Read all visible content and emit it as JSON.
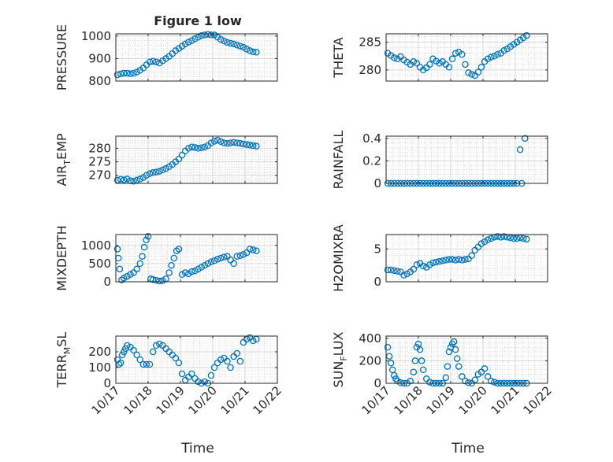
{
  "figure": {
    "title": "Figure 1 low",
    "xlabel": "Time",
    "marker_color": "#0072BD",
    "axis_color": "#262626",
    "grid_color": "#b0b0b0"
  },
  "chart_data": [
    {
      "type": "scatter",
      "ylabel": "PRESSURE",
      "ylabel_sub": "",
      "ylabel_tail": "",
      "title": "Figure 1 low",
      "xlim": [
        0,
        5
      ],
      "ylim": [
        800,
        1010
      ],
      "xticks": [
        0,
        1,
        2,
        3,
        4,
        5
      ],
      "xtick_labels": [],
      "yticks": [
        800,
        900,
        1000
      ],
      "ytick_labels": [
        "800",
        "900",
        "1000"
      ],
      "grid": true,
      "x": [
        0.05,
        0.15,
        0.25,
        0.35,
        0.45,
        0.55,
        0.65,
        0.75,
        0.85,
        0.95,
        1.05,
        1.15,
        1.25,
        1.35,
        1.45,
        1.55,
        1.65,
        1.75,
        1.85,
        1.95,
        2.05,
        2.15,
        2.25,
        2.35,
        2.45,
        2.55,
        2.65,
        2.75,
        2.85,
        2.95,
        3.05,
        3.15,
        3.25,
        3.35,
        3.45,
        3.55,
        3.65,
        3.75,
        3.85,
        3.95,
        4.05,
        4.15,
        4.25,
        4.35
      ],
      "y": [
        828,
        832,
        835,
        835,
        833,
        835,
        840,
        848,
        858,
        872,
        885,
        888,
        885,
        880,
        890,
        900,
        910,
        922,
        935,
        945,
        955,
        965,
        973,
        980,
        988,
        995,
        1002,
        1005,
        1008,
        1005,
        1005,
        995,
        985,
        978,
        972,
        968,
        965,
        960,
        955,
        950,
        942,
        935,
        930,
        928
      ]
    },
    {
      "type": "scatter",
      "ylabel": "THETA",
      "ylabel_sub": "",
      "ylabel_tail": "",
      "xlim": [
        0,
        5
      ],
      "ylim": [
        278,
        286.5
      ],
      "xticks": [
        0,
        1,
        2,
        3,
        4,
        5
      ],
      "xtick_labels": [],
      "yticks": [
        280,
        285
      ],
      "ytick_labels": [
        "280",
        "285"
      ],
      "grid": true,
      "x": [
        0.05,
        0.15,
        0.25,
        0.35,
        0.45,
        0.55,
        0.65,
        0.75,
        0.85,
        0.95,
        1.05,
        1.15,
        1.25,
        1.35,
        1.45,
        1.55,
        1.65,
        1.75,
        1.85,
        1.95,
        2.05,
        2.15,
        2.25,
        2.35,
        2.45,
        2.55,
        2.65,
        2.75,
        2.85,
        2.95,
        3.05,
        3.15,
        3.25,
        3.35,
        3.45,
        3.55,
        3.65,
        3.75,
        3.85,
        3.95,
        4.05,
        4.15,
        4.25,
        4.35
      ],
      "y": [
        283,
        282.6,
        282.2,
        282,
        282.4,
        281.8,
        281.4,
        281,
        281.5,
        281.2,
        280.5,
        280,
        280.4,
        281,
        282,
        281.6,
        281.2,
        281.5,
        281,
        280.5,
        282,
        283,
        283.2,
        282.8,
        281,
        279.5,
        279.2,
        279,
        279.6,
        280.5,
        281.5,
        282,
        282.3,
        282.5,
        282.8,
        283,
        283.5,
        283.8,
        284.2,
        284.6,
        285,
        285.4,
        285.8,
        286.2
      ]
    },
    {
      "type": "scatter",
      "ylabel": "AIR",
      "ylabel_sub": "T",
      "ylabel_tail": "EMP",
      "xlim": [
        0,
        5
      ],
      "ylim": [
        267,
        284.5
      ],
      "xticks": [
        0,
        1,
        2,
        3,
        4,
        5
      ],
      "xtick_labels": [],
      "yticks": [
        270,
        275,
        280
      ],
      "ytick_labels": [
        "270",
        "275",
        "280"
      ],
      "grid": true,
      "x": [
        0.05,
        0.15,
        0.25,
        0.35,
        0.45,
        0.55,
        0.65,
        0.75,
        0.85,
        0.95,
        1.05,
        1.15,
        1.25,
        1.35,
        1.45,
        1.55,
        1.65,
        1.75,
        1.85,
        1.95,
        2.05,
        2.15,
        2.25,
        2.35,
        2.45,
        2.55,
        2.65,
        2.75,
        2.85,
        2.95,
        3.05,
        3.15,
        3.25,
        3.35,
        3.45,
        3.55,
        3.65,
        3.75,
        3.85,
        3.95,
        4.05,
        4.15,
        4.25,
        4.35
      ],
      "y": [
        268.2,
        268.5,
        268.3,
        268.6,
        268,
        267.8,
        268.2,
        268.6,
        269.2,
        270,
        270.6,
        271,
        271.2,
        271.5,
        272,
        272.5,
        273.2,
        274,
        275,
        276,
        277.5,
        279,
        280,
        280.5,
        280.3,
        280,
        280.2,
        280.5,
        281,
        282,
        282.6,
        283,
        282.5,
        282,
        281.8,
        282,
        282.2,
        282,
        281.8,
        281.6,
        281.4,
        281.2,
        281,
        280.8
      ]
    },
    {
      "type": "scatter",
      "ylabel": "RAINFALL",
      "ylabel_sub": "",
      "ylabel_tail": "",
      "xlim": [
        0,
        5
      ],
      "ylim": [
        0,
        0.42
      ],
      "xticks": [
        0,
        1,
        2,
        3,
        4,
        5
      ],
      "xtick_labels": [],
      "yticks": [
        0,
        0.2,
        0.4
      ],
      "ytick_labels": [
        "0",
        "0.2",
        "0.4"
      ],
      "grid": true,
      "x": [
        0.05,
        0.15,
        0.25,
        0.35,
        0.45,
        0.55,
        0.65,
        0.75,
        0.85,
        0.95,
        1.05,
        1.15,
        1.25,
        1.35,
        1.45,
        1.55,
        1.65,
        1.75,
        1.85,
        1.95,
        2.05,
        2.15,
        2.25,
        2.35,
        2.45,
        2.55,
        2.65,
        2.75,
        2.85,
        2.95,
        3.05,
        3.15,
        3.25,
        3.35,
        3.45,
        3.55,
        3.65,
        3.75,
        3.85,
        3.95,
        4.05,
        4.15,
        4.2,
        4.3
      ],
      "y": [
        0,
        0,
        0,
        0,
        0,
        0,
        0,
        0,
        0,
        0,
        0,
        0,
        0,
        0,
        0,
        0,
        0,
        0,
        0,
        0,
        0,
        0,
        0,
        0,
        0,
        0,
        0,
        0,
        0,
        0,
        0,
        0,
        0,
        0,
        0,
        0,
        0,
        0,
        0,
        0,
        0,
        0.3,
        0,
        0.4
      ]
    },
    {
      "type": "scatter",
      "ylabel": "MIXDEPTH",
      "ylabel_sub": "",
      "ylabel_tail": "",
      "xlim": [
        0,
        5
      ],
      "ylim": [
        0,
        1300
      ],
      "xticks": [
        0,
        1,
        2,
        3,
        4,
        5
      ],
      "xtick_labels": [],
      "yticks": [
        0,
        500,
        1000
      ],
      "ytick_labels": [
        "0",
        "500",
        "1000"
      ],
      "grid": true,
      "x": [
        0.05,
        0.08,
        0.12,
        0.18,
        0.25,
        0.35,
        0.45,
        0.55,
        0.65,
        0.75,
        0.82,
        0.88,
        0.94,
        1.0,
        1.08,
        1.15,
        1.25,
        1.35,
        1.45,
        1.55,
        1.65,
        1.72,
        1.8,
        1.88,
        1.95,
        2.05,
        2.15,
        2.25,
        2.35,
        2.45,
        2.55,
        2.65,
        2.75,
        2.85,
        2.95,
        3.05,
        3.15,
        3.25,
        3.35,
        3.45,
        3.55,
        3.65,
        3.75,
        3.85,
        3.95,
        4.05,
        4.15,
        4.25,
        4.35
      ],
      "y": [
        900,
        650,
        350,
        50,
        100,
        150,
        200,
        250,
        350,
        500,
        700,
        950,
        1150,
        1250,
        80,
        60,
        40,
        20,
        30,
        80,
        250,
        450,
        650,
        850,
        900,
        200,
        250,
        220,
        280,
        300,
        350,
        400,
        450,
        500,
        550,
        580,
        620,
        650,
        680,
        700,
        600,
        500,
        700,
        720,
        750,
        800,
        900,
        880,
        850
      ]
    },
    {
      "type": "scatter",
      "ylabel": "H2OMIXRA",
      "ylabel_sub": "",
      "ylabel_tail": "",
      "xlim": [
        0,
        5
      ],
      "ylim": [
        0,
        7.2
      ],
      "xticks": [
        0,
        1,
        2,
        3,
        4,
        5
      ],
      "xtick_labels": [],
      "yticks": [
        0,
        5
      ],
      "ytick_labels": [
        "0",
        "5"
      ],
      "grid": true,
      "x": [
        0.05,
        0.15,
        0.25,
        0.35,
        0.45,
        0.55,
        0.65,
        0.75,
        0.85,
        0.95,
        1.05,
        1.15,
        1.25,
        1.35,
        1.45,
        1.55,
        1.65,
        1.75,
        1.85,
        1.95,
        2.05,
        2.15,
        2.25,
        2.35,
        2.45,
        2.55,
        2.65,
        2.75,
        2.85,
        2.95,
        3.05,
        3.15,
        3.25,
        3.35,
        3.45,
        3.55,
        3.65,
        3.75,
        3.85,
        3.95,
        4.05,
        4.15,
        4.25,
        4.35
      ],
      "y": [
        1.8,
        1.8,
        1.7,
        1.6,
        1.5,
        1.0,
        1.2,
        1.5,
        1.9,
        2.6,
        2.8,
        2.4,
        2.2,
        2.6,
        2.9,
        3.0,
        3.1,
        3.2,
        3.3,
        3.4,
        3.4,
        3.3,
        3.4,
        3.3,
        3.4,
        3.5,
        4.0,
        4.8,
        5.3,
        5.8,
        6.1,
        6.4,
        6.6,
        6.8,
        6.9,
        6.8,
        6.9,
        6.8,
        6.7,
        6.6,
        6.6,
        6.7,
        6.6,
        6.5
      ]
    },
    {
      "type": "scatter",
      "ylabel": "TERR",
      "ylabel_sub": "M",
      "ylabel_tail": "SL",
      "xlim": [
        0,
        5
      ],
      "ylim": [
        0,
        300
      ],
      "xticks": [
        0,
        1,
        2,
        3,
        4,
        5
      ],
      "xtick_labels": [
        "10/17",
        "10/18",
        "10/19",
        "10/20",
        "10/21",
        "10/22"
      ],
      "yticks": [
        0,
        100,
        200
      ],
      "ytick_labels": [
        "0",
        "100",
        "200"
      ],
      "grid": true,
      "x": [
        0.05,
        0.1,
        0.15,
        0.2,
        0.25,
        0.3,
        0.35,
        0.45,
        0.55,
        0.65,
        0.75,
        0.85,
        0.95,
        1.05,
        1.15,
        1.25,
        1.35,
        1.45,
        1.55,
        1.65,
        1.75,
        1.85,
        1.95,
        2.05,
        2.15,
        2.25,
        2.35,
        2.45,
        2.55,
        2.65,
        2.75,
        2.85,
        2.95,
        3.05,
        3.15,
        3.25,
        3.35,
        3.45,
        3.55,
        3.65,
        3.75,
        3.85,
        3.95,
        4.05,
        4.15,
        4.25,
        4.35
      ],
      "y": [
        150,
        120,
        130,
        180,
        200,
        220,
        240,
        230,
        210,
        180,
        150,
        120,
        120,
        120,
        200,
        240,
        250,
        240,
        220,
        200,
        180,
        160,
        130,
        60,
        20,
        40,
        60,
        30,
        10,
        0,
        10,
        0,
        50,
        100,
        130,
        150,
        160,
        140,
        100,
        170,
        190,
        140,
        260,
        280,
        290,
        270,
        280
      ]
    },
    {
      "type": "scatter",
      "ylabel": "SUN",
      "ylabel_sub": "F",
      "ylabel_tail": "LUX",
      "xlim": [
        0,
        5
      ],
      "ylim": [
        0,
        420
      ],
      "xticks": [
        0,
        1,
        2,
        3,
        4,
        5
      ],
      "xtick_labels": [
        "10/17",
        "10/18",
        "10/19",
        "10/20",
        "10/21",
        "10/22"
      ],
      "yticks": [
        0,
        200,
        400
      ],
      "ytick_labels": [
        "0",
        "200",
        "400"
      ],
      "grid": true,
      "x": [
        0.05,
        0.1,
        0.15,
        0.2,
        0.25,
        0.3,
        0.35,
        0.45,
        0.55,
        0.65,
        0.75,
        0.85,
        0.9,
        0.95,
        1.0,
        1.05,
        1.1,
        1.15,
        1.25,
        1.35,
        1.45,
        1.55,
        1.65,
        1.75,
        1.85,
        1.9,
        1.95,
        2.0,
        2.05,
        2.1,
        2.15,
        2.2,
        2.25,
        2.35,
        2.45,
        2.55,
        2.65,
        2.75,
        2.85,
        2.95,
        3.05,
        3.15,
        3.25,
        3.35,
        3.45,
        3.55,
        3.65,
        3.75,
        3.85,
        3.95,
        4.05,
        4.15,
        4.25,
        4.35
      ],
      "y": [
        320,
        240,
        180,
        120,
        70,
        40,
        20,
        5,
        0,
        0,
        20,
        100,
        200,
        320,
        350,
        300,
        200,
        120,
        40,
        10,
        0,
        0,
        0,
        0,
        50,
        150,
        280,
        320,
        350,
        370,
        300,
        220,
        150,
        60,
        20,
        5,
        0,
        30,
        80,
        100,
        130,
        60,
        20,
        10,
        0,
        0,
        0,
        0,
        0,
        0,
        0,
        0,
        0,
        0
      ]
    }
  ]
}
